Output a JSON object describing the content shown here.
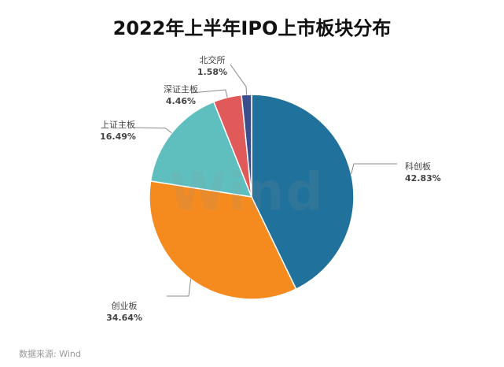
{
  "chart_data": {
    "type": "pie",
    "title": "2022年上半年IPO上市板块分布",
    "slices": [
      {
        "label": "科创板",
        "value": 42.83,
        "display": "42.83%",
        "color": "#20719c"
      },
      {
        "label": "创业板",
        "value": 34.64,
        "display": "34.64%",
        "color": "#f58a1f"
      },
      {
        "label": "上证主板",
        "value": 16.49,
        "display": "16.49%",
        "color": "#5fbfbf"
      },
      {
        "label": "深证主板",
        "value": 4.46,
        "display": "4.46%",
        "color": "#e05a5a"
      },
      {
        "label": "北交所",
        "value": 1.58,
        "display": "1.58%",
        "color": "#3b4f8c"
      }
    ],
    "watermark": "Wind",
    "source": "数据来源: Wind"
  }
}
